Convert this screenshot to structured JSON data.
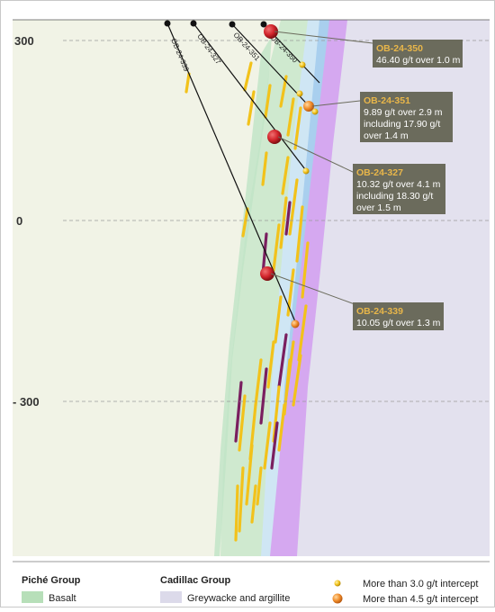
{
  "elevations": [
    "300",
    "0",
    "- 300"
  ],
  "holes": [
    {
      "label": "OB-24-339"
    },
    {
      "label": "OB-24-327"
    },
    {
      "label": "OB-24-351"
    },
    {
      "label": "OB-24-350"
    }
  ],
  "callouts": [
    {
      "title": "OB-24-350",
      "lines": [
        "46.40 g/t over 1.0 m"
      ]
    },
    {
      "title": "OB-24-351",
      "lines": [
        "9.89 g/t over 2.9 m",
        "including 17.90 g/t",
        "over 1.4 m"
      ]
    },
    {
      "title": "OB-24-327",
      "lines": [
        "10.32 g/t over 4.1 m",
        "including 18.30 g/t",
        "over 1.5 m"
      ]
    },
    {
      "title": "OB-24-339",
      "lines": [
        "10.05 g/t over 1.3 m"
      ]
    }
  ],
  "legend": {
    "piche_heading": "Piché Group",
    "piche_item": "Basalt",
    "cadillac_heading": "Cadillac Group",
    "cadillac_item": "Greywacke and argillite",
    "intercept_small": "More than 3.0 g/t intercept",
    "intercept_large": "More than 4.5 g/t intercept"
  },
  "colors": {
    "background_zone": "#f1f3e6",
    "basalt": "#cfe9cf",
    "greywacke": "#e3e1ee",
    "sediment": "#d5a8f0",
    "blue_band": "#a9cfee",
    "mineralization": "#f2c21b",
    "high_grade": "#7a1f5f",
    "callout_box": "#6b6b5c",
    "callout_title": "#e8b64a",
    "intercept_red": "#d0232a"
  }
}
